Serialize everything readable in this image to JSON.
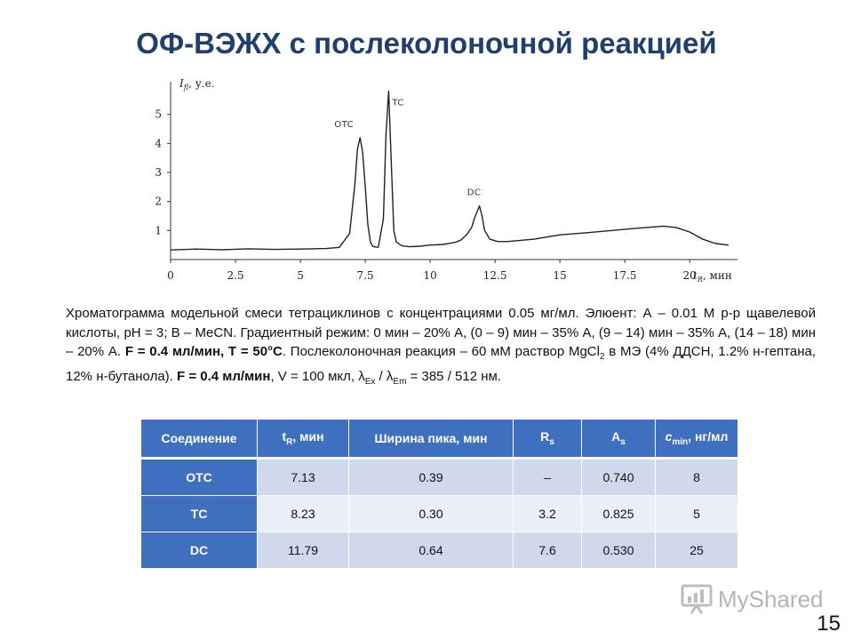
{
  "slide": {
    "title": "ОФ-ВЭЖХ с послеколоночной реакцией",
    "page_number": "15"
  },
  "caption": {
    "part1": "Хроматограмма модельной смеси тетрациклинов с концентрациями 0.05 мг/мл. Элюент: А – 0.01 М р-р щавелевой кислоты, рН = 3; В – MeCN. Градиентный режим: 0 мин – 20% А, (0 – 9) мин – 35% А, (9 – 14) мин – 35% А, (14 – 18) мин – 20% А.",
    "bold1": "F = 0.4 мл/мин, T = 50°C",
    "part2": ". Послеколоночная реакция – 60 мМ раствор MgCl",
    "sub_mgcl": "2",
    "part3": " в МЭ (4% ДДСН, 1.2% н-гептана,  12% н-бутанола).",
    "bold2": "F = 0.4 мл/мин",
    "part4": ", V = 100 мкл, λ",
    "sub_ex": "Ex",
    "part5": " / λ",
    "sub_em": "Em",
    "part6": " = 385 / 512 нм."
  },
  "table": {
    "headers": {
      "compound": "Соединение",
      "tr_main": "t",
      "tr_sub": "R",
      "tr_tail": ", мин",
      "width": "Ширина пика, мин",
      "rs_main": "R",
      "rs_sub": "s",
      "as_main": "A",
      "as_sub": "s",
      "cmin_main": "c",
      "cmin_sub": "min",
      "cmin_tail": ", нг/мл"
    },
    "rows": [
      {
        "compound": "OTC",
        "tr": "7.13",
        "width": "0.39",
        "rs": "–",
        "as": "0.740",
        "cmin": "8"
      },
      {
        "compound": "TC",
        "tr": "8.23",
        "width": "0.30",
        "rs": "3.2",
        "as": "0.825",
        "cmin": "5"
      },
      {
        "compound": "DC",
        "tr": "11.79",
        "width": "0.64",
        "rs": "7.6",
        "as": "0.530",
        "cmin": "25"
      }
    ]
  },
  "logo": {
    "text": "MyShared"
  },
  "chart_data": {
    "type": "line",
    "ylabel_main": "I",
    "ylabel_sub": "fl",
    "ylabel_unit": ", у.е.",
    "xlabel_main": "t",
    "xlabel_sub": "R",
    "xlabel_unit": ", мин",
    "xlim": [
      0,
      21.5
    ],
    "ylim": [
      0,
      6
    ],
    "x_ticks": [
      "0",
      "2.5",
      "5",
      "7.5",
      "10",
      "12.5",
      "15",
      "17.5",
      "20"
    ],
    "y_ticks": [
      "1",
      "2",
      "3",
      "4",
      "5"
    ],
    "series": [
      {
        "x": [
          0,
          1,
          2,
          3,
          4,
          5,
          6,
          6.5,
          6.9,
          7.1,
          7.2,
          7.3,
          7.4,
          7.5,
          7.6,
          7.7,
          7.8,
          8.0,
          8.2,
          8.3,
          8.4,
          8.5,
          8.6,
          8.7,
          8.9,
          9.2,
          9.6,
          10,
          10.5,
          11,
          11.2,
          11.4,
          11.6,
          11.7,
          11.9,
          12.0,
          12.1,
          12.3,
          12.6,
          13,
          14,
          15,
          16,
          17,
          18,
          19,
          19.5,
          20,
          20.5,
          21,
          21.5
        ],
        "y": [
          0.33,
          0.36,
          0.34,
          0.37,
          0.35,
          0.36,
          0.38,
          0.42,
          0.9,
          2.6,
          3.8,
          4.2,
          3.7,
          2.5,
          1.2,
          0.6,
          0.45,
          0.42,
          1.4,
          4.3,
          5.8,
          3.4,
          1.0,
          0.6,
          0.48,
          0.44,
          0.46,
          0.5,
          0.52,
          0.6,
          0.68,
          0.85,
          1.1,
          1.4,
          1.85,
          1.5,
          1.0,
          0.7,
          0.62,
          0.62,
          0.7,
          0.85,
          0.92,
          1.0,
          1.08,
          1.15,
          1.1,
          0.95,
          0.7,
          0.55,
          0.5
        ]
      }
    ],
    "annotations": [
      {
        "text": "OTC",
        "x": 7.3,
        "y": 4.2
      },
      {
        "text": "TC",
        "x": 8.4,
        "y": 5.8
      },
      {
        "text": "DC",
        "x": 11.9,
        "y": 1.85
      }
    ]
  }
}
